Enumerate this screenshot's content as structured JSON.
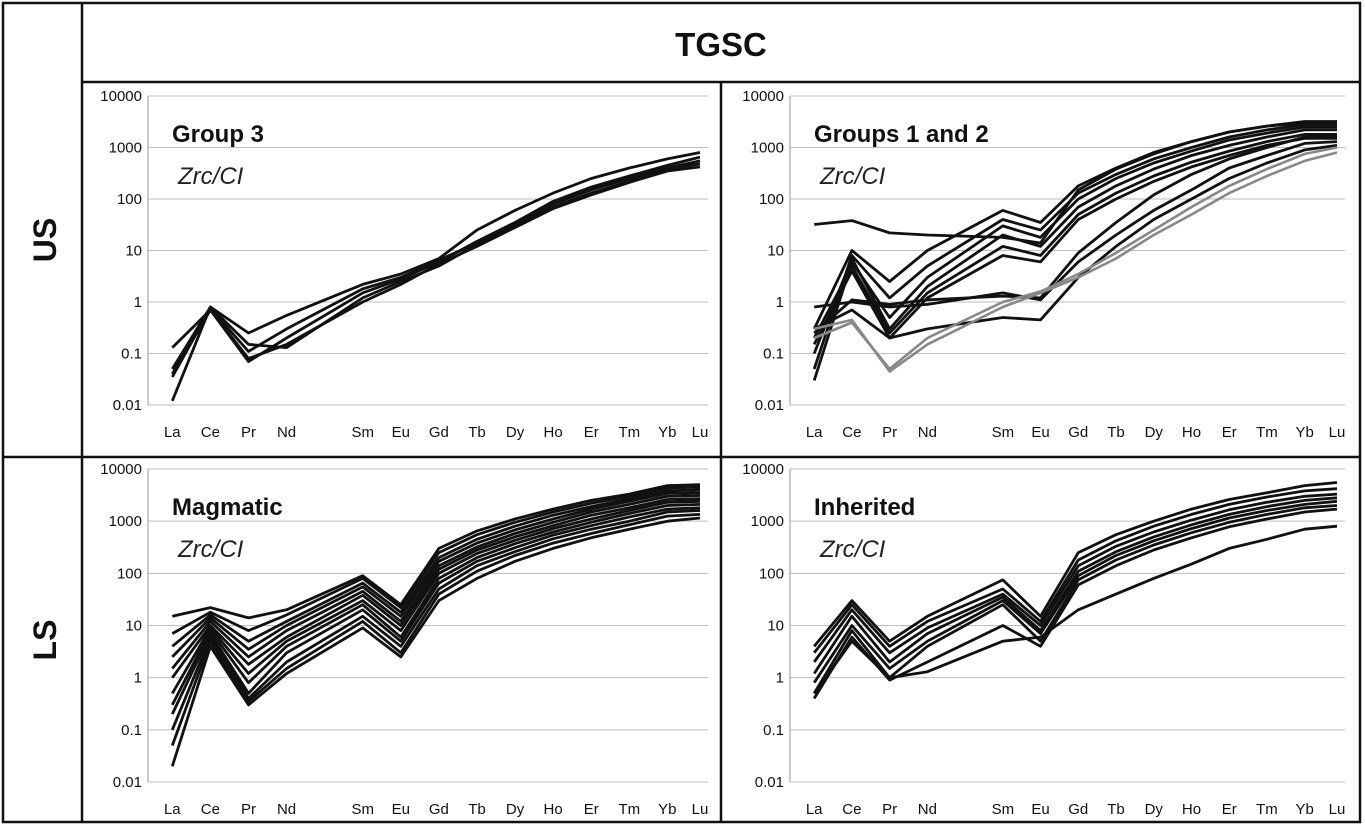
{
  "figure": {
    "title": "TGSC",
    "row_labels": [
      "US",
      "LS"
    ]
  },
  "chart_data": [
    {
      "type": "line",
      "title": "Group 3",
      "subtitle": "Zrc/CI",
      "row": "US",
      "x": [
        "La",
        "Ce",
        "Pr",
        "Nd",
        "Sm",
        "Eu",
        "Gd",
        "Tb",
        "Dy",
        "Ho",
        "Er",
        "Tm",
        "Yb",
        "Lu"
      ],
      "yscale": "log",
      "ylim": [
        0.01,
        10000
      ],
      "yticks": [
        "0.01",
        "0.1",
        "1",
        "10",
        "100",
        "1000",
        "10000"
      ],
      "grid": true,
      "series": [
        {
          "color": "#111111",
          "values": [
            0.012,
            0.8,
            0.25,
            0.55,
            2.2,
            3.5,
            7,
            25,
            60,
            130,
            250,
            400,
            600,
            800
          ]
        },
        {
          "color": "#111111",
          "values": [
            0.13,
            0.7,
            0.07,
            0.2,
            1.5,
            2.8,
            6,
            15,
            35,
            90,
            170,
            280,
            450,
            650
          ]
        },
        {
          "color": "#111111",
          "values": [
            0.05,
            0.8,
            0.15,
            0.13,
            1.2,
            2.5,
            5,
            13,
            30,
            70,
            130,
            220,
            380,
            480
          ]
        },
        {
          "color": "#111111",
          "values": [
            0.035,
            0.75,
            0.11,
            0.3,
            1.8,
            3,
            6.5,
            14,
            32,
            80,
            150,
            250,
            400,
            550
          ]
        },
        {
          "color": "#111111",
          "values": [
            0.04,
            0.7,
            0.08,
            0.15,
            1.0,
            2.2,
            5.5,
            12,
            28,
            65,
            120,
            210,
            350,
            420
          ]
        }
      ]
    },
    {
      "type": "line",
      "title": "Groups 1 and 2",
      "subtitle": "Zrc/CI",
      "row": "US",
      "x": [
        "La",
        "Ce",
        "Pr",
        "Nd",
        "Sm",
        "Eu",
        "Gd",
        "Tb",
        "Dy",
        "Ho",
        "Er",
        "Tm",
        "Yb",
        "Lu"
      ],
      "yscale": "log",
      "ylim": [
        0.01,
        10000
      ],
      "yticks": [
        "0.01",
        "0.1",
        "1",
        "10",
        "100",
        "1000",
        "10000"
      ],
      "grid": true,
      "series": [
        {
          "color": "#111111",
          "values": [
            32,
            38,
            22,
            20,
            18,
            14,
            150,
            380,
            750,
            1300,
            2000,
            2600,
            3200,
            3200
          ]
        },
        {
          "color": "#111111",
          "values": [
            0.3,
            10,
            2.5,
            10,
            60,
            35,
            180,
            400,
            800,
            1300,
            2000,
            2600,
            3000,
            3000
          ]
        },
        {
          "color": "#111111",
          "values": [
            0.05,
            8,
            1.2,
            5,
            40,
            25,
            130,
            300,
            600,
            1000,
            1600,
            2200,
            2800,
            2800
          ]
        },
        {
          "color": "#111111",
          "values": [
            0.03,
            6,
            0.5,
            3,
            30,
            18,
            100,
            250,
            500,
            850,
            1400,
            1900,
            2500,
            2500
          ]
        },
        {
          "color": "#111111",
          "values": [
            0.1,
            7,
            0.3,
            2,
            20,
            12,
            70,
            180,
            380,
            700,
            1100,
            1600,
            2200,
            2200
          ]
        },
        {
          "color": "#111111",
          "values": [
            0.2,
            5,
            0.25,
            1.5,
            12,
            8,
            50,
            130,
            280,
            520,
            850,
            1300,
            1800,
            1800
          ]
        },
        {
          "color": "#111111",
          "values": [
            0.15,
            4,
            0.2,
            1.2,
            8,
            6,
            40,
            100,
            220,
            420,
            700,
            1100,
            1500,
            1500
          ]
        },
        {
          "color": "#111111",
          "values": [
            0.8,
            1.0,
            0.8,
            0.9,
            1.5,
            1.1,
            6,
            20,
            60,
            150,
            400,
            700,
            1200,
            1300
          ]
        },
        {
          "color": "#111111",
          "values": [
            0.3,
            0.7,
            0.2,
            0.3,
            0.5,
            0.45,
            3,
            12,
            40,
            100,
            250,
            500,
            900,
            1100
          ]
        },
        {
          "color": "#111111",
          "values": [
            0.25,
            1.1,
            0.9,
            1.1,
            1.3,
            1.2,
            9,
            35,
            120,
            300,
            600,
            1000,
            1600,
            1700
          ]
        },
        {
          "color": "#888888",
          "values": [
            0.3,
            0.45,
            0.045,
            0.15,
            0.8,
            1.5,
            3,
            7,
            20,
            50,
            130,
            280,
            550,
            800
          ]
        },
        {
          "color": "#888888",
          "values": [
            0.2,
            0.4,
            0.05,
            0.2,
            1.0,
            1.6,
            3.5,
            9,
            25,
            70,
            180,
            380,
            750,
            1000
          ]
        }
      ]
    },
    {
      "type": "line",
      "title": "Magmatic",
      "subtitle": "Zrc/CI",
      "row": "LS",
      "x": [
        "La",
        "Ce",
        "Pr",
        "Nd",
        "Sm",
        "Eu",
        "Gd",
        "Tb",
        "Dy",
        "Ho",
        "Er",
        "Tm",
        "Yb",
        "Lu"
      ],
      "yscale": "log",
      "ylim": [
        0.01,
        10000
      ],
      "yticks": [
        "0.01",
        "0.1",
        "1",
        "10",
        "100",
        "1000",
        "10000"
      ],
      "grid": true,
      "series": [
        {
          "color": "#111111",
          "values": [
            15,
            22,
            14,
            20,
            90,
            25,
            300,
            650,
            1100,
            1700,
            2500,
            3300,
            4800,
            5000
          ]
        },
        {
          "color": "#111111",
          "values": [
            7,
            18,
            8,
            16,
            80,
            22,
            250,
            550,
            950,
            1500,
            2200,
            3000,
            4300,
            4500
          ]
        },
        {
          "color": "#111111",
          "values": [
            4,
            16,
            5,
            12,
            65,
            18,
            200,
            450,
            800,
            1300,
            1900,
            2700,
            3800,
            4000
          ]
        },
        {
          "color": "#111111",
          "values": [
            2.5,
            14,
            3.5,
            10,
            55,
            15,
            170,
            380,
            680,
            1100,
            1700,
            2400,
            3400,
            3500
          ]
        },
        {
          "color": "#111111",
          "values": [
            1.5,
            12,
            2.5,
            8,
            45,
            12,
            140,
            320,
            580,
            950,
            1500,
            2100,
            3000,
            3100
          ]
        },
        {
          "color": "#111111",
          "values": [
            1,
            10,
            1.8,
            6,
            38,
            10,
            120,
            280,
            500,
            820,
            1300,
            1800,
            2600,
            2700
          ]
        },
        {
          "color": "#111111",
          "values": [
            0.5,
            9,
            1.2,
            5,
            30,
            8,
            100,
            240,
            430,
            720,
            1100,
            1600,
            2300,
            2400
          ]
        },
        {
          "color": "#111111",
          "values": [
            0.3,
            8,
            0.8,
            4,
            25,
            6,
            80,
            200,
            370,
            620,
            950,
            1400,
            2000,
            2100
          ]
        },
        {
          "color": "#111111",
          "values": [
            0.2,
            7,
            0.5,
            3,
            20,
            5,
            65,
            170,
            310,
            540,
            820,
            1200,
            1700,
            1800
          ]
        },
        {
          "color": "#111111",
          "values": [
            0.1,
            6,
            0.4,
            2,
            15,
            4,
            50,
            140,
            260,
            460,
            700,
            1000,
            1500,
            1600
          ]
        },
        {
          "color": "#111111",
          "values": [
            0.05,
            5,
            0.35,
            1.5,
            12,
            3,
            40,
            110,
            220,
            380,
            580,
            850,
            1250,
            1350
          ]
        },
        {
          "color": "#111111",
          "values": [
            0.02,
            4,
            0.3,
            1.2,
            9,
            2.5,
            30,
            80,
            170,
            300,
            480,
            700,
            1000,
            1150
          ]
        }
      ]
    },
    {
      "type": "line",
      "title": "Inherited",
      "subtitle": "Zrc/CI",
      "row": "LS",
      "x": [
        "La",
        "Ce",
        "Pr",
        "Nd",
        "Sm",
        "Eu",
        "Gd",
        "Tb",
        "Dy",
        "Ho",
        "Er",
        "Tm",
        "Yb",
        "Lu"
      ],
      "yscale": "log",
      "ylim": [
        0.01,
        10000
      ],
      "yticks": [
        "0.01",
        "0.1",
        "1",
        "10",
        "100",
        "1000",
        "10000"
      ],
      "grid": true,
      "series": [
        {
          "color": "#111111",
          "values": [
            4,
            30,
            5,
            15,
            75,
            15,
            250,
            550,
            1000,
            1700,
            2600,
            3500,
            4800,
            5500
          ]
        },
        {
          "color": "#111111",
          "values": [
            3,
            25,
            4,
            12,
            50,
            12,
            180,
            420,
            800,
            1350,
            2100,
            2900,
            3800,
            4200
          ]
        },
        {
          "color": "#111111",
          "values": [
            2,
            20,
            3,
            9,
            40,
            10,
            140,
            330,
            620,
            1050,
            1650,
            2300,
            3000,
            3300
          ]
        },
        {
          "color": "#111111",
          "values": [
            1.2,
            15,
            2,
            7,
            35,
            8,
            110,
            260,
            500,
            850,
            1350,
            1900,
            2500,
            2800
          ]
        },
        {
          "color": "#111111",
          "values": [
            0.8,
            10,
            1.5,
            5,
            30,
            7,
            90,
            220,
            420,
            720,
            1150,
            1600,
            2100,
            2400
          ]
        },
        {
          "color": "#111111",
          "values": [
            0.5,
            8,
            1,
            4,
            25,
            5,
            75,
            180,
            350,
            600,
            950,
            1350,
            1800,
            2000
          ]
        },
        {
          "color": "#111111",
          "values": [
            0.4,
            6,
            0.9,
            2,
            10,
            4,
            60,
            140,
            280,
            480,
            780,
            1100,
            1500,
            1700
          ]
        },
        {
          "color": "#111111",
          "values": [
            0.5,
            5,
            1,
            1.3,
            5,
            6,
            20,
            40,
            80,
            150,
            300,
            450,
            700,
            800
          ]
        }
      ]
    }
  ]
}
